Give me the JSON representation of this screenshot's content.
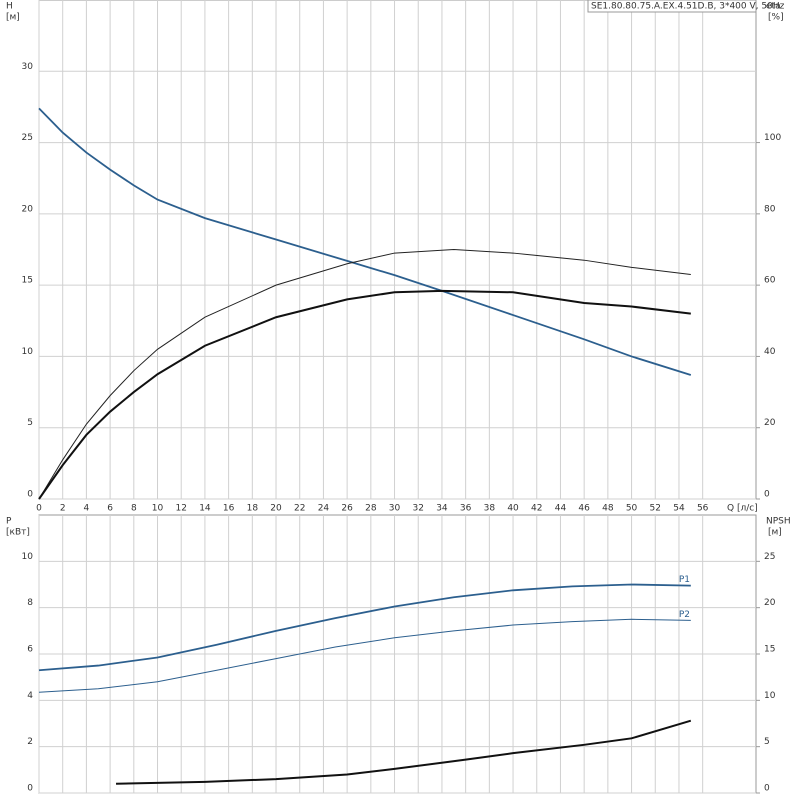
{
  "chart_data": [
    {
      "type": "line",
      "title": "SE1.80.80.75.A.EX.4.51D.B, 3*400 V, 50Hz",
      "y_label": "H",
      "y_unit": "[м]",
      "y2_label": "eta",
      "y2_unit": "[%]",
      "x_label": "Q [л/с]",
      "xlim": [
        0,
        60.5
      ],
      "xticks": [
        0,
        2,
        4,
        6,
        8,
        10,
        12,
        14,
        16,
        18,
        20,
        22,
        24,
        26,
        28,
        30,
        32,
        34,
        36,
        38,
        40,
        42,
        44,
        46,
        48,
        50,
        52,
        54,
        56
      ],
      "ylim": [
        0,
        35
      ],
      "yticks": [
        0,
        5,
        10,
        15,
        20,
        25,
        30
      ],
      "y2lim": [
        0,
        140
      ],
      "y2ticks": [
        0,
        20,
        40,
        60,
        80,
        100
      ],
      "grid": true,
      "series": [
        {
          "color": "#2c5f8e",
          "width": 1.8,
          "x": [
            0,
            2,
            4,
            6,
            8,
            10,
            14,
            20,
            26,
            30,
            34,
            40,
            46,
            50,
            55
          ],
          "values": [
            27.4,
            25.7,
            24.3,
            23.1,
            22.0,
            21.0,
            19.7,
            18.2,
            16.7,
            15.7,
            14.6,
            12.9,
            11.2,
            10.0,
            8.7
          ]
        },
        {
          "color": "#222222",
          "width": 1,
          "axis": "y2",
          "x": [
            0,
            2,
            4,
            6,
            8,
            10,
            14,
            20,
            26,
            30,
            35,
            40,
            46,
            50,
            55
          ],
          "values": [
            0,
            11,
            21,
            29,
            36,
            42,
            51,
            60,
            66,
            69,
            70,
            69,
            67,
            65,
            63
          ]
        },
        {
          "color": "#111111",
          "width": 2,
          "axis": "y2",
          "x": [
            0,
            2,
            4,
            6,
            8,
            10,
            14,
            20,
            26,
            30,
            34,
            40,
            46,
            50,
            55
          ],
          "values": [
            0,
            9.5,
            18,
            24.5,
            30,
            35,
            43,
            51,
            56,
            58,
            58.4,
            58,
            55,
            54,
            52
          ]
        }
      ]
    },
    {
      "type": "line",
      "y_label": "P",
      "y_unit": "[кВт]",
      "y2_label": "NPSH",
      "y2_unit": "[м]",
      "xlim": [
        0,
        60.5
      ],
      "xticks": [
        0,
        2,
        4,
        6,
        8,
        10,
        12,
        14,
        16,
        18,
        20,
        22,
        24,
        26,
        28,
        30,
        32,
        34,
        36,
        38,
        40,
        42,
        44,
        46,
        48,
        50,
        52,
        54,
        56
      ],
      "ylim": [
        0,
        12
      ],
      "yticks": [
        0,
        2,
        4,
        6,
        8,
        10
      ],
      "y2lim": [
        0,
        30
      ],
      "y2ticks": [
        0,
        5,
        10,
        15,
        20,
        25
      ],
      "grid": true,
      "series": [
        {
          "name": "P1",
          "color": "#2c5f8e",
          "width": 1.8,
          "x": [
            0,
            5,
            10,
            15,
            20,
            25,
            30,
            35,
            40,
            45,
            50,
            55
          ],
          "values": [
            5.3,
            5.5,
            5.85,
            6.4,
            7.0,
            7.55,
            8.05,
            8.45,
            8.75,
            8.92,
            9.0,
            8.95
          ]
        },
        {
          "name": "P2",
          "color": "#2c5f8e",
          "width": 1,
          "x": [
            0,
            5,
            10,
            15,
            20,
            25,
            30,
            35,
            40,
            45,
            50,
            55
          ],
          "values": [
            4.35,
            4.5,
            4.8,
            5.3,
            5.8,
            6.3,
            6.7,
            7.0,
            7.25,
            7.4,
            7.5,
            7.45
          ]
        },
        {
          "color": "#111111",
          "width": 2,
          "axis": "y2",
          "x": [
            6.5,
            14,
            20,
            26,
            30,
            36,
            40,
            46,
            50,
            55
          ],
          "values": [
            1.0,
            1.2,
            1.5,
            2.0,
            2.6,
            3.6,
            4.3,
            5.2,
            5.9,
            7.8
          ]
        }
      ]
    }
  ]
}
